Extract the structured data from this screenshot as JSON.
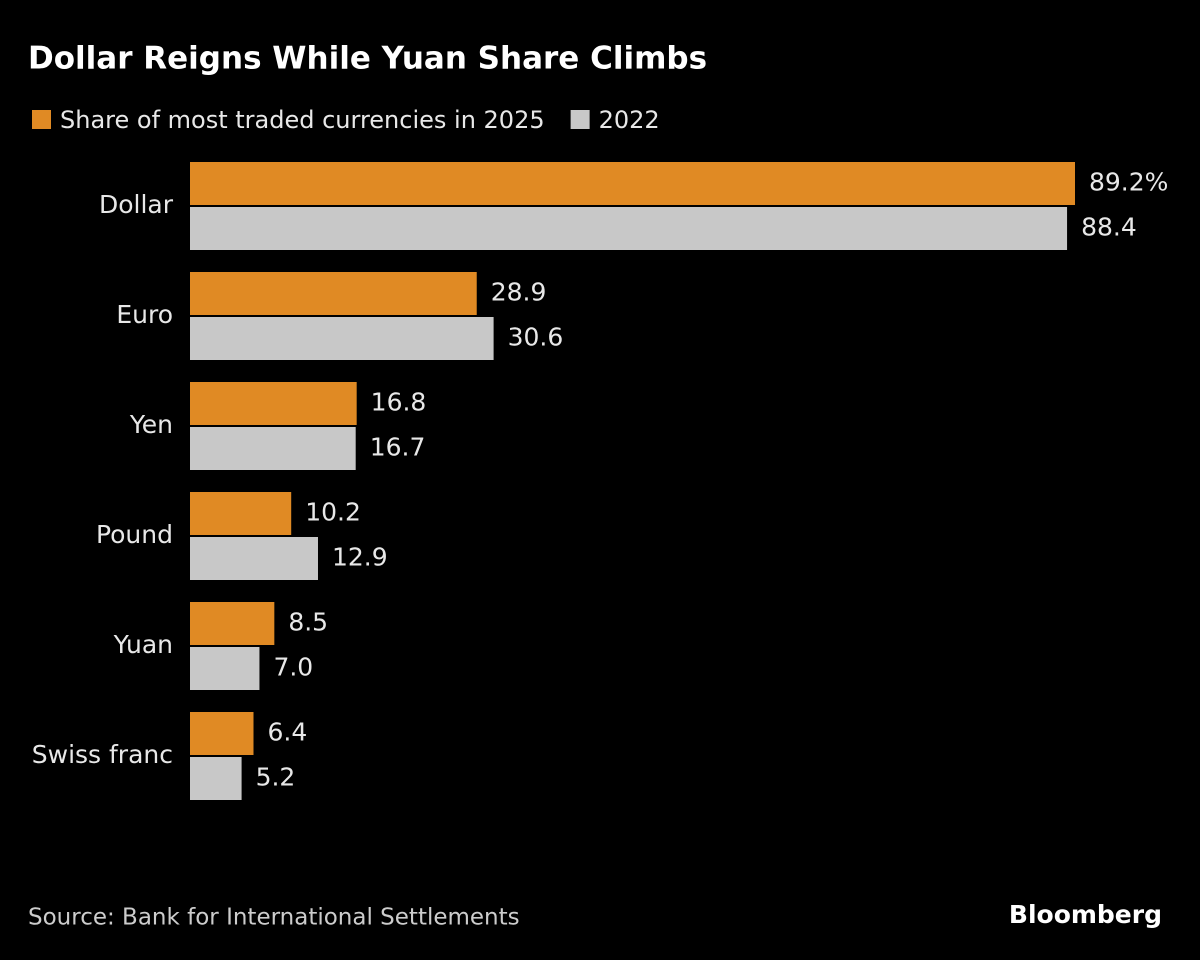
{
  "chart_data": {
    "type": "bar",
    "orientation": "horizontal",
    "title": "Dollar Reigns While Yuan Share Climbs",
    "categories": [
      "Dollar",
      "Euro",
      "Yen",
      "Pound",
      "Yuan",
      "Swiss franc"
    ],
    "series": [
      {
        "name": "Share of most traded currencies in 2025",
        "color": "#e08a24",
        "values": [
          89.2,
          28.9,
          16.8,
          10.2,
          8.5,
          6.4
        ],
        "value_labels": [
          "89.2%",
          "28.9",
          "16.8",
          "10.2",
          "8.5",
          "6.4"
        ]
      },
      {
        "name": "2022",
        "color": "#c8c8c8",
        "values": [
          88.4,
          30.6,
          16.7,
          12.9,
          7.0,
          5.2
        ],
        "value_labels": [
          "88.4",
          "30.6",
          "16.7",
          "12.9",
          "7.0",
          "5.2"
        ]
      }
    ],
    "source": "Source: Bank for International Settlements",
    "brand": "Bloomberg"
  }
}
